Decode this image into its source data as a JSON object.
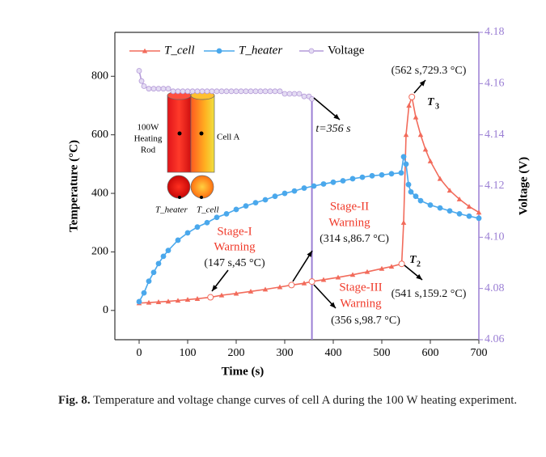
{
  "chart_data": {
    "type": "line",
    "xlabel": "Time (s)",
    "ylabel": "Temperature (°C)",
    "y2label": "Voltage (V)",
    "xlim": [
      -50,
      700
    ],
    "xticks": [
      0,
      100,
      200,
      300,
      400,
      500,
      600,
      700
    ],
    "ylim": [
      -100,
      950
    ],
    "yticks": [
      0,
      200,
      400,
      600,
      800
    ],
    "y2lim": [
      4.06,
      4.18
    ],
    "y2ticks": [
      4.06,
      4.08,
      {
        "value": 4.1,
        "label": "4.10"
      },
      4.12,
      4.14,
      4.16,
      4.18
    ],
    "vline": 356,
    "series": [
      {
        "name": "T_cell",
        "color": "#f26b5b",
        "marker": "triangle",
        "x": [
          0,
          20,
          40,
          60,
          80,
          100,
          120,
          147,
          170,
          200,
          230,
          260,
          290,
          314,
          340,
          356,
          380,
          410,
          440,
          470,
          500,
          520,
          541,
          545,
          550,
          556,
          562,
          570,
          580,
          590,
          600,
          620,
          640,
          660,
          680,
          700
        ],
        "values": [
          25,
          27,
          29,
          31,
          34,
          37,
          40,
          45,
          52,
          58,
          65,
          72,
          80,
          86.7,
          93,
          98.7,
          105,
          113,
          122,
          132,
          143,
          150,
          159.2,
          300,
          600,
          700,
          729.3,
          660,
          600,
          550,
          510,
          450,
          410,
          380,
          355,
          335
        ]
      },
      {
        "name": "T_heater",
        "color": "#4aa8ec",
        "marker": "circle",
        "x": [
          0,
          10,
          20,
          30,
          40,
          50,
          60,
          80,
          100,
          120,
          140,
          160,
          180,
          200,
          220,
          240,
          260,
          280,
          300,
          320,
          340,
          360,
          380,
          400,
          420,
          440,
          460,
          480,
          500,
          520,
          540,
          545,
          550,
          555,
          560,
          570,
          580,
          600,
          620,
          640,
          660,
          680,
          700
        ],
        "values": [
          30,
          60,
          100,
          130,
          160,
          185,
          205,
          240,
          265,
          285,
          300,
          318,
          330,
          345,
          357,
          368,
          378,
          390,
          400,
          408,
          418,
          425,
          432,
          438,
          443,
          450,
          455,
          460,
          463,
          467,
          470,
          525,
          500,
          430,
          405,
          390,
          375,
          360,
          350,
          340,
          330,
          322,
          315
        ]
      },
      {
        "name": "Voltage",
        "color": "#b49ad8",
        "marker": "circle",
        "axis": "y2",
        "x": [
          0,
          5,
          10,
          20,
          30,
          40,
          50,
          60,
          70,
          80,
          90,
          100,
          110,
          120,
          130,
          140,
          150,
          160,
          170,
          180,
          190,
          200,
          210,
          220,
          230,
          240,
          250,
          260,
          270,
          280,
          290,
          300,
          310,
          320,
          330,
          340,
          350,
          356
        ],
        "values": [
          4.165,
          4.161,
          4.159,
          4.158,
          4.158,
          4.158,
          4.158,
          4.158,
          4.157,
          4.157,
          4.157,
          4.157,
          4.157,
          4.157,
          4.157,
          4.157,
          4.157,
          4.157,
          4.157,
          4.157,
          4.157,
          4.157,
          4.157,
          4.157,
          4.157,
          4.157,
          4.157,
          4.157,
          4.157,
          4.157,
          4.157,
          4.156,
          4.156,
          4.156,
          4.156,
          4.155,
          4.155,
          4.154
        ]
      }
    ],
    "annotations": [
      "(562 s,729.3 °C)",
      "T",
      "3",
      "t=356 s",
      "Stage-I",
      "Warning",
      "(147 s,45 °C)",
      "Stage-II",
      "Warning",
      "(314 s,86.7 °C)",
      "Stage-III",
      "Warning",
      "(356 s,98.7 °C)",
      "(541 s,159.2 °C)",
      "T",
      "2"
    ],
    "inset": {
      "rod_label": [
        "100W",
        "Heating",
        "Rod"
      ],
      "cell_label": "Cell A",
      "heater_label": "T_heater",
      "cell_point_label": "T_cell"
    }
  },
  "caption": {
    "label": "Fig. 8.",
    "text": "Temperature and voltage change curves of cell A during the 100 W heating experiment."
  }
}
